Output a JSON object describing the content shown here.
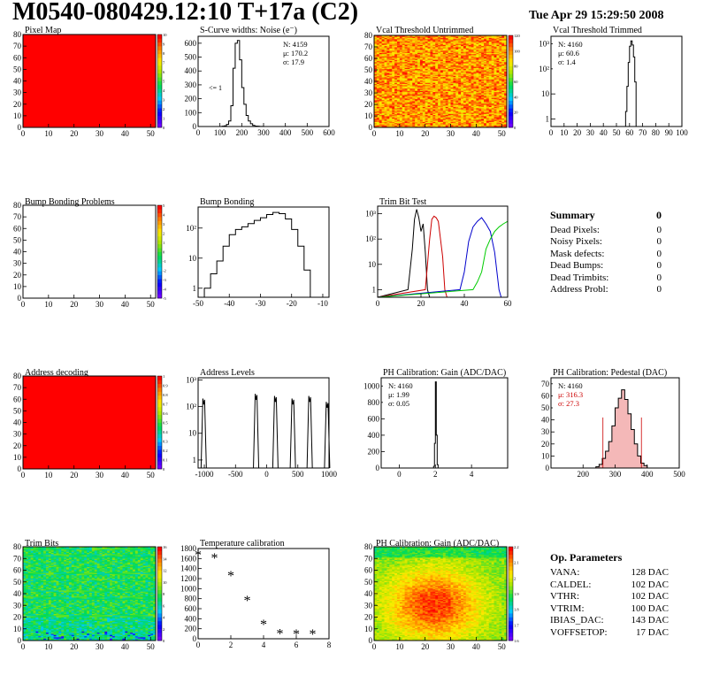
{
  "header": {
    "title": "M0540-080429.12:10 T+17a (C2)",
    "date": "Tue Apr 29 15:29:50 2008"
  },
  "colors": {
    "map_red": "#ff0000",
    "frame": "#000000",
    "trim_red": "#cc0000",
    "trim_blue": "#0000cc",
    "trim_green": "#00cc00",
    "pedestal_stats": "#cc0000"
  },
  "chart_data": [
    {
      "id": "pixel_map",
      "type": "heatmap",
      "title": "Pixel Map",
      "xlim": [
        0,
        52
      ],
      "ylim": [
        0,
        80
      ],
      "xticks": [
        0,
        10,
        20,
        30,
        40,
        50
      ],
      "yticks": [
        0,
        10,
        20,
        30,
        40,
        50,
        60,
        70,
        80
      ],
      "fill": "uniform",
      "fill_value": 10,
      "zrange": [
        0,
        10
      ],
      "zticks": [
        "10",
        "9",
        "8",
        "7",
        "6",
        "5",
        "4",
        "3",
        "2",
        "1",
        "0"
      ]
    },
    {
      "id": "scurve",
      "type": "histogram",
      "title": "S-Curve widths: Noise (e⁻)",
      "xlim": [
        0,
        600
      ],
      "ylim": [
        0,
        650
      ],
      "xticks": [
        0,
        100,
        200,
        300,
        400,
        500,
        600
      ],
      "yticks": [
        0,
        100,
        200,
        300,
        400,
        500,
        600
      ],
      "stats": [
        "N: 4159",
        "μ: 170.2",
        "σ: 17.9"
      ],
      "annotation": "<= 1",
      "x": [
        100,
        110,
        120,
        130,
        140,
        150,
        160,
        170,
        180,
        190,
        200,
        210,
        220,
        230,
        240,
        250,
        260,
        270,
        280,
        290,
        300
      ],
      "y": [
        0,
        2,
        5,
        15,
        40,
        150,
        420,
        600,
        620,
        480,
        280,
        160,
        80,
        40,
        20,
        8,
        3,
        2,
        1,
        1,
        0
      ]
    },
    {
      "id": "vcal_untrimmed",
      "type": "heatmap",
      "title": "Vcal Threshold Untrimmed",
      "xlim": [
        0,
        52
      ],
      "ylim": [
        0,
        80
      ],
      "xticks": [
        0,
        10,
        20,
        30,
        40,
        50
      ],
      "yticks": [
        0,
        10,
        20,
        30,
        40,
        50,
        60,
        70,
        80
      ],
      "fill": "noise",
      "zrange": [
        0,
        120
      ],
      "zticks": [
        "120",
        "100",
        "80",
        "60",
        "40",
        "20",
        "0"
      ]
    },
    {
      "id": "vcal_trimmed",
      "type": "histogram",
      "scale": "log",
      "title": "Vcal Threshold Trimmed",
      "xlim": [
        0,
        100
      ],
      "ylim": [
        0.5,
        2000
      ],
      "xticks": [
        0,
        10,
        20,
        30,
        40,
        50,
        60,
        70,
        80,
        90,
        100
      ],
      "ytick_labels": [
        "1",
        "10",
        "10²",
        "10³"
      ],
      "stats": [
        "N: 4160",
        "μ: 60.6",
        "σ: 1.4"
      ],
      "x": [
        56,
        57,
        58,
        59,
        60,
        61,
        62,
        63,
        64,
        65
      ],
      "y": [
        0,
        2,
        20,
        180,
        800,
        1300,
        900,
        300,
        30,
        0
      ]
    },
    {
      "id": "bump_problems",
      "type": "heatmap",
      "title": "Bump Bonding Problems",
      "xlim": [
        0,
        52
      ],
      "ylim": [
        0,
        80
      ],
      "xticks": [
        0,
        10,
        20,
        30,
        40,
        50
      ],
      "yticks": [
        0,
        10,
        20,
        30,
        40,
        50,
        60,
        70,
        80
      ],
      "fill": "empty",
      "zrange": [
        -5,
        5
      ],
      "zticks": [
        "5",
        "4",
        "3",
        "2",
        "1",
        "0",
        "-1",
        "-2",
        "-3",
        "-4",
        "-5"
      ]
    },
    {
      "id": "bump_bonding",
      "type": "histogram",
      "scale": "log",
      "title": "Bump Bonding",
      "xlim": [
        -50,
        -8
      ],
      "ylim": [
        0.5,
        500
      ],
      "xticks": [
        -50,
        -40,
        -30,
        -20,
        -10
      ],
      "ytick_labels": [
        "1",
        "10",
        "10²"
      ],
      "x": [
        -48,
        -46,
        -44,
        -42,
        -40,
        -38,
        -36,
        -34,
        -32,
        -30,
        -28,
        -26,
        -24,
        -22,
        -20,
        -18,
        -16,
        -14
      ],
      "y": [
        1,
        3,
        8,
        25,
        60,
        90,
        110,
        140,
        180,
        220,
        280,
        330,
        300,
        200,
        90,
        25,
        4,
        0
      ]
    },
    {
      "id": "trim_bit_test",
      "type": "line",
      "scale": "log",
      "title": "Trim Bit Test",
      "xlim": [
        0,
        60
      ],
      "ylim": [
        0.5,
        2000
      ],
      "xticks": [
        0,
        20,
        40,
        60
      ],
      "ytick_labels": [
        "1",
        "10",
        "10²",
        "10³"
      ],
      "series": [
        {
          "color": "#000000",
          "x": [
            14,
            16,
            17,
            18,
            19,
            20,
            21,
            22,
            23
          ],
          "y": [
            1,
            40,
            600,
            1500,
            700,
            200,
            400,
            30,
            1
          ]
        },
        {
          "color": "#cc0000",
          "x": [
            22,
            24,
            25,
            26,
            27,
            28,
            29,
            30,
            31
          ],
          "y": [
            1,
            100,
            600,
            800,
            700,
            500,
            100,
            20,
            1
          ]
        },
        {
          "color": "#0000cc",
          "x": [
            38,
            40,
            42,
            44,
            46,
            48,
            50,
            52,
            54,
            56
          ],
          "y": [
            1,
            5,
            80,
            300,
            500,
            700,
            400,
            200,
            30,
            1
          ]
        },
        {
          "color": "#00cc00",
          "x": [
            44,
            46,
            48,
            50,
            52,
            54,
            56,
            58,
            60
          ],
          "y": [
            1,
            2,
            5,
            40,
            100,
            200,
            300,
            400,
            500
          ]
        }
      ]
    },
    {
      "id": "address_decoding",
      "type": "heatmap",
      "title": "Address decoding",
      "xlim": [
        0,
        52
      ],
      "ylim": [
        0,
        80
      ],
      "xticks": [
        0,
        10,
        20,
        30,
        40,
        50
      ],
      "yticks": [
        0,
        10,
        20,
        30,
        40,
        50,
        60,
        70,
        80
      ],
      "fill": "uniform",
      "fill_value": 1,
      "zrange": [
        0,
        1
      ],
      "zticks": [
        "1",
        "0.9",
        "0.8",
        "0.7",
        "0.6",
        "0.5",
        "0.4",
        "0.3",
        "0.2",
        "0.1",
        "0"
      ]
    },
    {
      "id": "address_levels",
      "type": "histogram",
      "scale": "log",
      "title": "Address Levels",
      "xlim": [
        -1100,
        1000
      ],
      "ylim": [
        0.5,
        1200
      ],
      "xticks": [
        -1000,
        -500,
        0,
        500,
        1000
      ],
      "ytick_labels": [
        "1",
        "10",
        "10²",
        "10³"
      ],
      "peaks": [
        {
          "x": -1010,
          "h": 200
        },
        {
          "x": -170,
          "h": 300
        },
        {
          "x": 140,
          "h": 250
        },
        {
          "x": 420,
          "h": 200
        },
        {
          "x": 690,
          "h": 250
        },
        {
          "x": 970,
          "h": 150
        }
      ]
    },
    {
      "id": "ph_gain",
      "type": "histogram",
      "title": "PH Calibration: Gain (ADC/DAC)",
      "xlim": [
        -1,
        6
      ],
      "ylim": [
        0,
        1100
      ],
      "xticks": [
        0,
        2,
        4
      ],
      "yticks": [
        0,
        200,
        400,
        600,
        800,
        1000
      ],
      "stats": [
        "N: 4160",
        "μ: 1.99",
        "σ: 0.05"
      ],
      "x": [
        1.85,
        1.9,
        1.95,
        2.0,
        2.05,
        2.1,
        2.15
      ],
      "y": [
        0,
        20,
        300,
        1050,
        400,
        40,
        0
      ]
    },
    {
      "id": "ph_pedestal",
      "type": "histogram",
      "title": "PH Calibration: Pedestal (DAC)",
      "xlim": [
        100,
        500
      ],
      "ylim": [
        0,
        75
      ],
      "xticks": [
        200,
        300,
        400,
        500
      ],
      "yticks": [
        0,
        10,
        20,
        30,
        40,
        50,
        60,
        70
      ],
      "stats": [
        "N: 4160",
        "μ: 316.3",
        "σ: 27.3"
      ],
      "markers": [
        262,
        382
      ],
      "x": [
        240,
        250,
        260,
        270,
        280,
        290,
        300,
        310,
        320,
        330,
        340,
        350,
        360,
        370,
        380,
        390,
        400
      ],
      "y": [
        1,
        3,
        8,
        14,
        22,
        35,
        50,
        58,
        65,
        57,
        45,
        32,
        20,
        10,
        4,
        2,
        0
      ]
    },
    {
      "id": "trim_bits",
      "type": "heatmap",
      "title": "Trim Bits",
      "xlim": [
        0,
        52
      ],
      "ylim": [
        0,
        80
      ],
      "xticks": [
        0,
        10,
        20,
        30,
        40,
        50
      ],
      "yticks": [
        0,
        10,
        20,
        30,
        40,
        50,
        60,
        70,
        80
      ],
      "fill": "trim",
      "zrange": [
        0,
        16
      ],
      "zticks": [
        "16",
        "14",
        "12",
        "10",
        "8",
        "6",
        "4",
        "2",
        "0"
      ]
    },
    {
      "id": "temp_calibration",
      "type": "scatter",
      "title": "Temperature calibration",
      "xlim": [
        0,
        8
      ],
      "ylim": [
        0,
        1800
      ],
      "xticks": [
        0,
        2,
        4,
        6,
        8
      ],
      "yticks": [
        0,
        200,
        400,
        600,
        800,
        1000,
        1200,
        1400,
        1600,
        1800
      ],
      "x": [
        0,
        1,
        2,
        3,
        4,
        5,
        6,
        7
      ],
      "y": [
        1670,
        1610,
        1250,
        760,
        280,
        100,
        90,
        90
      ]
    },
    {
      "id": "ph_gain_map",
      "type": "heatmap",
      "title": "PH Calibration: Gain (ADC/DAC)",
      "xlim": [
        0,
        52
      ],
      "ylim": [
        0,
        80
      ],
      "xticks": [
        0,
        10,
        20,
        30,
        40,
        50
      ],
      "yticks": [
        0,
        10,
        20,
        30,
        40,
        50,
        60,
        70,
        80
      ],
      "fill": "gainblob",
      "zrange": [
        1.6,
        2.2
      ],
      "zticks": [
        "2.2",
        "2.1",
        "2",
        "1.9",
        "1.8",
        "1.7",
        "1.6"
      ]
    }
  ],
  "summary": {
    "title": "Summary",
    "total": "0",
    "rows": [
      {
        "label": "Dead Pixels:",
        "value": "0"
      },
      {
        "label": "Noisy Pixels:",
        "value": "0"
      },
      {
        "label": "Mask defects:",
        "value": "0"
      },
      {
        "label": "Dead Bumps:",
        "value": "0"
      },
      {
        "label": "Dead Trimbits:",
        "value": "0"
      },
      {
        "label": "Address Probl:",
        "value": "0"
      }
    ]
  },
  "op_params": {
    "title": "Op. Parameters",
    "rows": [
      {
        "label": "VANA:",
        "value": "128 DAC"
      },
      {
        "label": "CALDEL:",
        "value": "102 DAC"
      },
      {
        "label": "VTHR:",
        "value": "102 DAC"
      },
      {
        "label": "VTRIM:",
        "value": "100 DAC"
      },
      {
        "label": "IBIAS_DAC:",
        "value": "143 DAC"
      },
      {
        "label": "VOFFSETOP:",
        "value": " 17 DAC"
      }
    ]
  }
}
